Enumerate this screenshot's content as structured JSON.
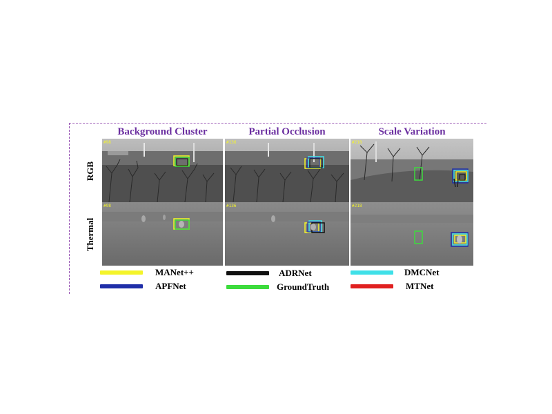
{
  "columns": [
    {
      "title": "Background Cluster",
      "rgb_frame": "#98",
      "thermal_frame": "#98"
    },
    {
      "title": "Partial Occlusion",
      "rgb_frame": "#136",
      "thermal_frame": "#136"
    },
    {
      "title": "Scale Variation",
      "rgb_frame": "#218",
      "thermal_frame": "#218"
    }
  ],
  "rows": [
    {
      "label": "RGB"
    },
    {
      "label": "Thermal"
    }
  ],
  "legend": [
    {
      "name": "MANet++",
      "color": "#f4f42a"
    },
    {
      "name": "ADRNet",
      "color": "#111111"
    },
    {
      "name": "DMCNet",
      "color": "#3fe0e8"
    },
    {
      "name": "APFNet",
      "color": "#1f2ea8"
    },
    {
      "name": "GroundTruth",
      "color": "#3ddc3d"
    },
    {
      "name": "MTNet",
      "color": "#e02020"
    }
  ]
}
